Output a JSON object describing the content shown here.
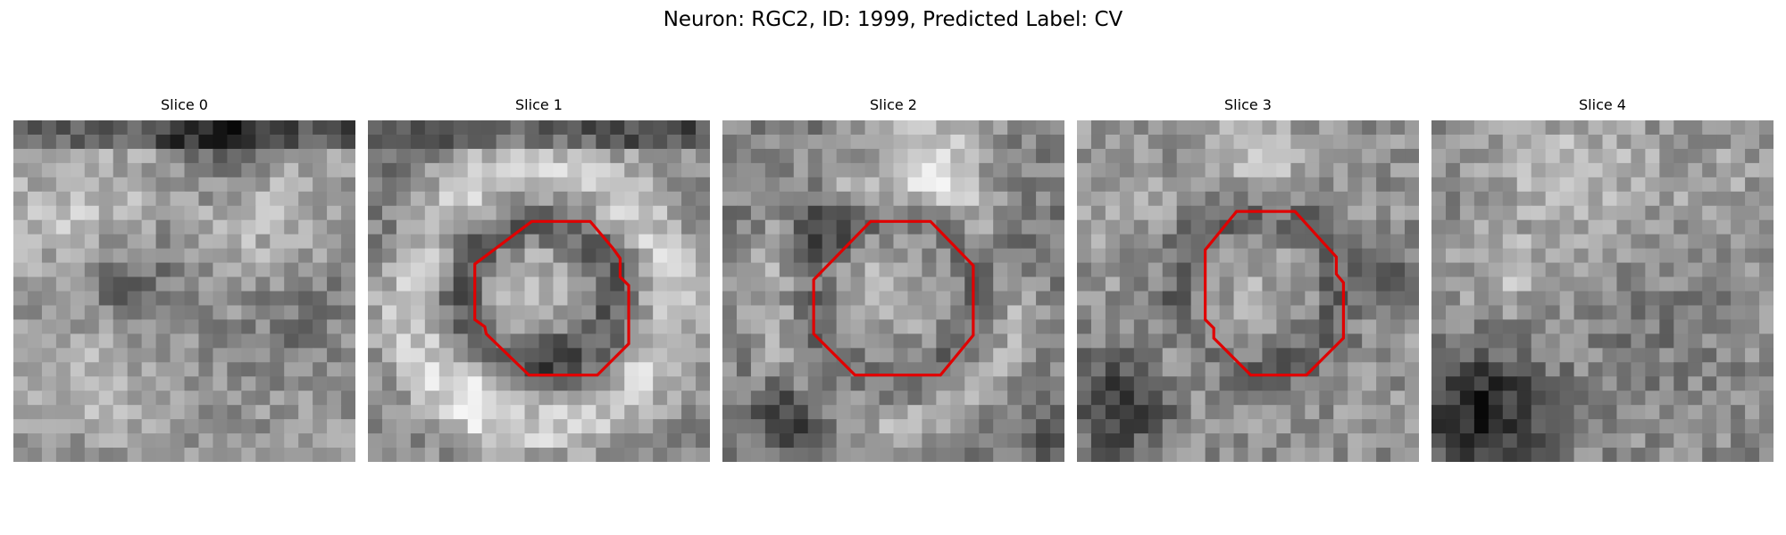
{
  "figure": {
    "title": "Neuron: RGC2, ID: 1999, Predicted Label: CV"
  },
  "colors": {
    "background": "#ffffff",
    "contour": "#e00000"
  },
  "panels": [
    {
      "title": "Slice 0",
      "contour": null
    },
    {
      "title": "Slice 1",
      "contour": [
        [
          11.5,
          7.1
        ],
        [
          15.6,
          7.1
        ],
        [
          17.2,
          9.0
        ],
        [
          17.7,
          9.7
        ],
        [
          17.7,
          11.0
        ],
        [
          18.3,
          11.6
        ],
        [
          18.3,
          15.7
        ],
        [
          16.1,
          17.9
        ],
        [
          11.3,
          17.9
        ],
        [
          8.3,
          15.0
        ],
        [
          8.2,
          14.5
        ],
        [
          7.5,
          14.0
        ],
        [
          7.5,
          10.1
        ]
      ]
    },
    {
      "title": "Slice 2",
      "contour": [
        [
          10.4,
          7.1
        ],
        [
          14.6,
          7.1
        ],
        [
          17.6,
          10.2
        ],
        [
          17.6,
          15.1
        ],
        [
          15.3,
          17.9
        ],
        [
          9.3,
          17.9
        ],
        [
          6.4,
          15.0
        ],
        [
          6.4,
          11.2
        ]
      ]
    },
    {
      "title": "Slice 3",
      "contour": [
        [
          11.2,
          6.4
        ],
        [
          15.3,
          6.4
        ],
        [
          17.2,
          8.5
        ],
        [
          18.2,
          9.6
        ],
        [
          18.2,
          10.8
        ],
        [
          18.7,
          11.4
        ],
        [
          18.7,
          15.3
        ],
        [
          16.1,
          17.9
        ],
        [
          12.2,
          17.9
        ],
        [
          9.6,
          15.3
        ],
        [
          9.6,
          14.6
        ],
        [
          9.0,
          14.0
        ],
        [
          9.0,
          9.1
        ]
      ]
    },
    {
      "title": "Slice 4",
      "contour": null
    }
  ]
}
